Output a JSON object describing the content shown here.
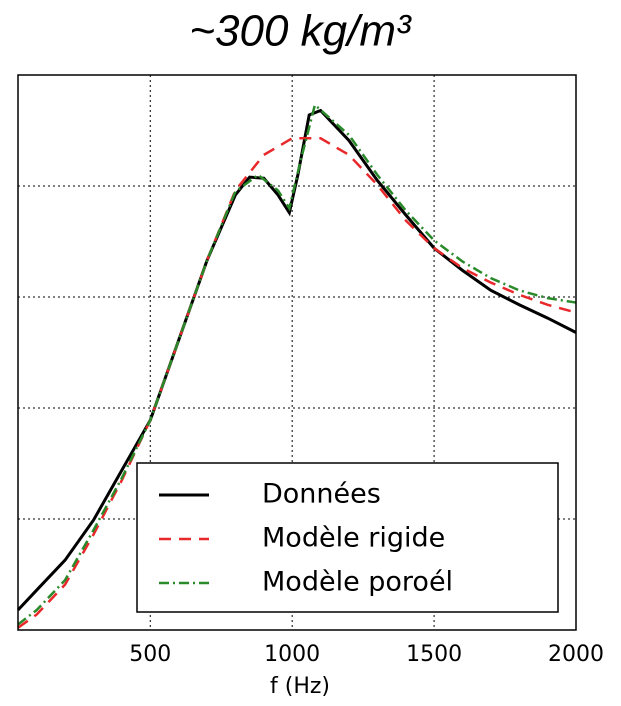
{
  "chart_data": {
    "type": "line",
    "title": "~300 kg/m³",
    "x_label": "f (Hz)",
    "xlim": [
      34,
      2000
    ],
    "xticks": [
      500,
      1000,
      1500,
      2000
    ],
    "ylim": [
      0,
      5
    ],
    "yticks": [
      1,
      2,
      3,
      4
    ],
    "grid": true,
    "legend": "lower right",
    "series": [
      {
        "name": "Données",
        "color": "#000000",
        "style": "solid",
        "x": [
          34,
          100,
          200,
          300,
          400,
          500,
          600,
          700,
          800,
          850,
          900,
          950,
          990,
          1020,
          1060,
          1100,
          1200,
          1300,
          1400,
          1500,
          1600,
          1700,
          1800,
          1900,
          2000
        ],
        "values": [
          0.18,
          0.36,
          0.63,
          0.99,
          1.44,
          1.89,
          2.61,
          3.33,
          3.92,
          4.08,
          4.07,
          3.92,
          3.76,
          4.1,
          4.64,
          4.68,
          4.41,
          4.05,
          3.74,
          3.44,
          3.24,
          3.06,
          2.93,
          2.81,
          2.68
        ]
      },
      {
        "name": "Modèle rigide",
        "color": "#e8282a",
        "style": "dashed",
        "x": [
          34,
          100,
          200,
          300,
          400,
          500,
          600,
          700,
          800,
          900,
          1000,
          1100,
          1200,
          1300,
          1400,
          1500,
          1600,
          1700,
          1800,
          1900,
          2000
        ],
        "values": [
          0.02,
          0.14,
          0.41,
          0.86,
          1.35,
          1.89,
          2.61,
          3.33,
          3.96,
          4.28,
          4.43,
          4.43,
          4.28,
          4.01,
          3.69,
          3.44,
          3.26,
          3.13,
          3.02,
          2.93,
          2.86
        ]
      },
      {
        "name": "Modèle poroél",
        "color": "#2a8a2a",
        "style": "dashdot",
        "x": [
          34,
          100,
          200,
          300,
          400,
          500,
          600,
          700,
          800,
          880,
          950,
          990,
          1030,
          1080,
          1200,
          1300,
          1400,
          1500,
          1600,
          1700,
          1800,
          1900,
          2000
        ],
        "values": [
          0.05,
          0.18,
          0.45,
          0.9,
          1.37,
          1.89,
          2.61,
          3.33,
          3.95,
          4.1,
          3.96,
          3.8,
          4.23,
          4.73,
          4.46,
          4.1,
          3.78,
          3.51,
          3.32,
          3.17,
          3.06,
          2.99,
          2.95
        ]
      }
    ]
  }
}
